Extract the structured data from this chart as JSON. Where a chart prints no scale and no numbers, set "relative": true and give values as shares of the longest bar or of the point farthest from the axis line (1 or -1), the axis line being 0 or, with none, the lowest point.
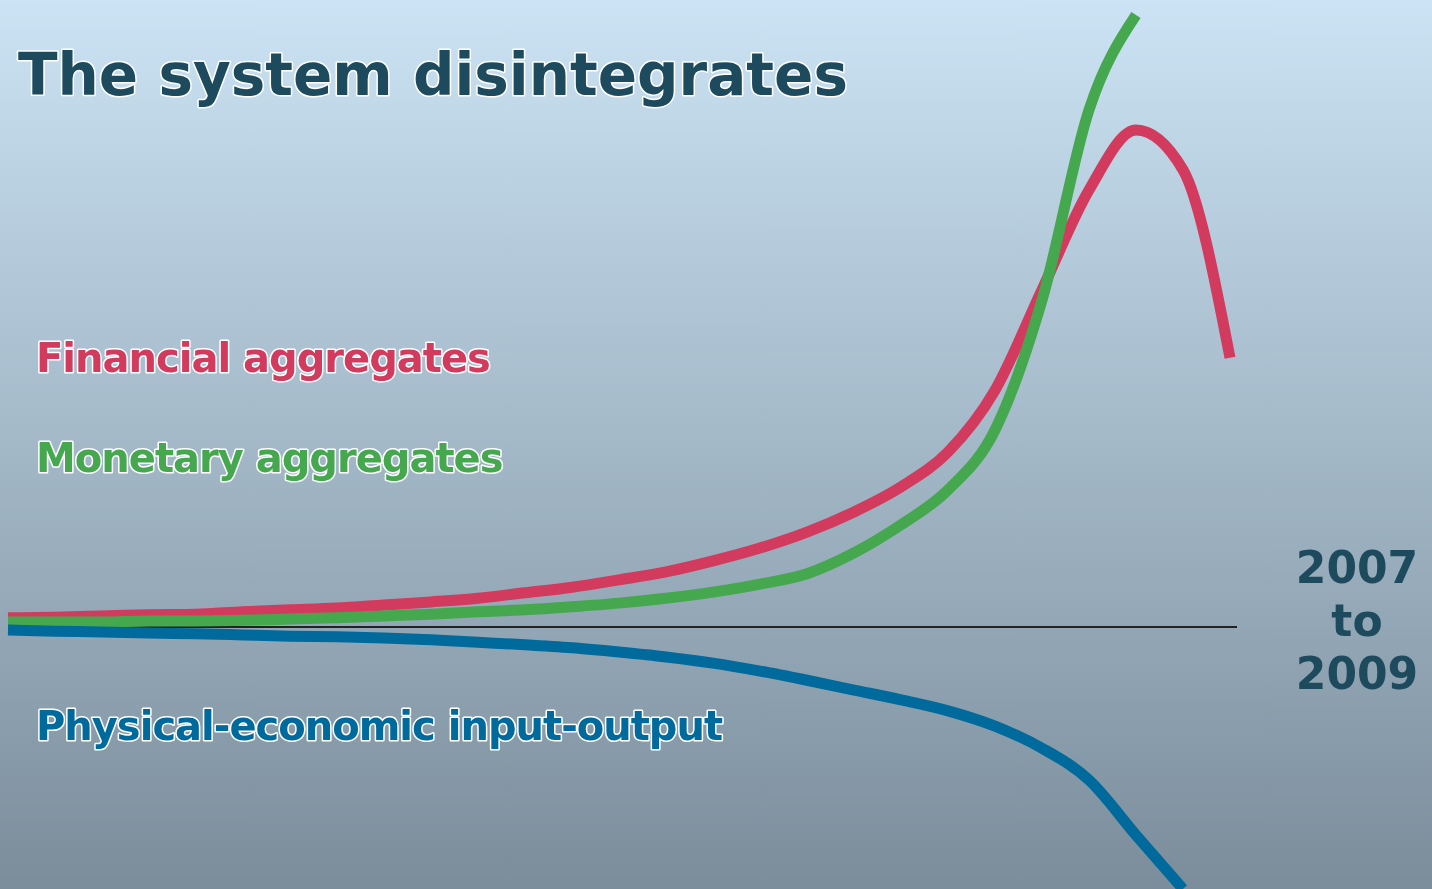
{
  "chart_data": {
    "type": "line",
    "title": "The system disintegrates",
    "relative": true,
    "categories": [
      null,
      null,
      null,
      null,
      null,
      null,
      null,
      null,
      null,
      null,
      null,
      null,
      null,
      null,
      null,
      null,
      null,
      null,
      null,
      null,
      null,
      null,
      null,
      null,
      null,
      null,
      null
    ],
    "series": [
      {
        "name": "Financial aggregates",
        "color": "#d23a5e",
        "values": [
          0.015,
          0.016,
          0.018,
          0.02,
          0.021,
          0.025,
          0.028,
          0.031,
          0.036,
          0.041,
          0.047,
          0.056,
          0.065,
          0.077,
          0.09,
          0.108,
          0.129,
          0.155,
          0.188,
          0.229,
          0.286,
          0.387,
          0.551,
          0.714,
          0.812,
          0.747,
          0.44
        ]
      },
      {
        "name": "Monetary aggregates",
        "color": "#45a84e",
        "values": [
          0.008,
          0.008,
          0.008,
          0.01,
          0.01,
          0.011,
          0.013,
          0.015,
          0.018,
          0.021,
          0.025,
          0.028,
          0.033,
          0.039,
          0.047,
          0.057,
          0.07,
          0.087,
          0.121,
          0.167,
          0.224,
          0.322,
          0.534,
          0.845,
          1,
          null,
          null
        ]
      },
      {
        "name": "Physical-economic input-output",
        "color": "#006a9c",
        "values": [
          -0.005,
          -0.007,
          -0.008,
          -0.01,
          -0.011,
          -0.013,
          -0.015,
          -0.016,
          -0.018,
          -0.021,
          -0.025,
          -0.029,
          -0.034,
          -0.041,
          -0.049,
          -0.059,
          -0.072,
          -0.087,
          -0.103,
          -0.119,
          -0.137,
          -0.162,
          -0.198,
          -0.25,
          -0.34,
          -0.428,
          null
        ]
      }
    ],
    "annotations": [
      "2007 to 2009"
    ],
    "line_style": "solid"
  }
}
